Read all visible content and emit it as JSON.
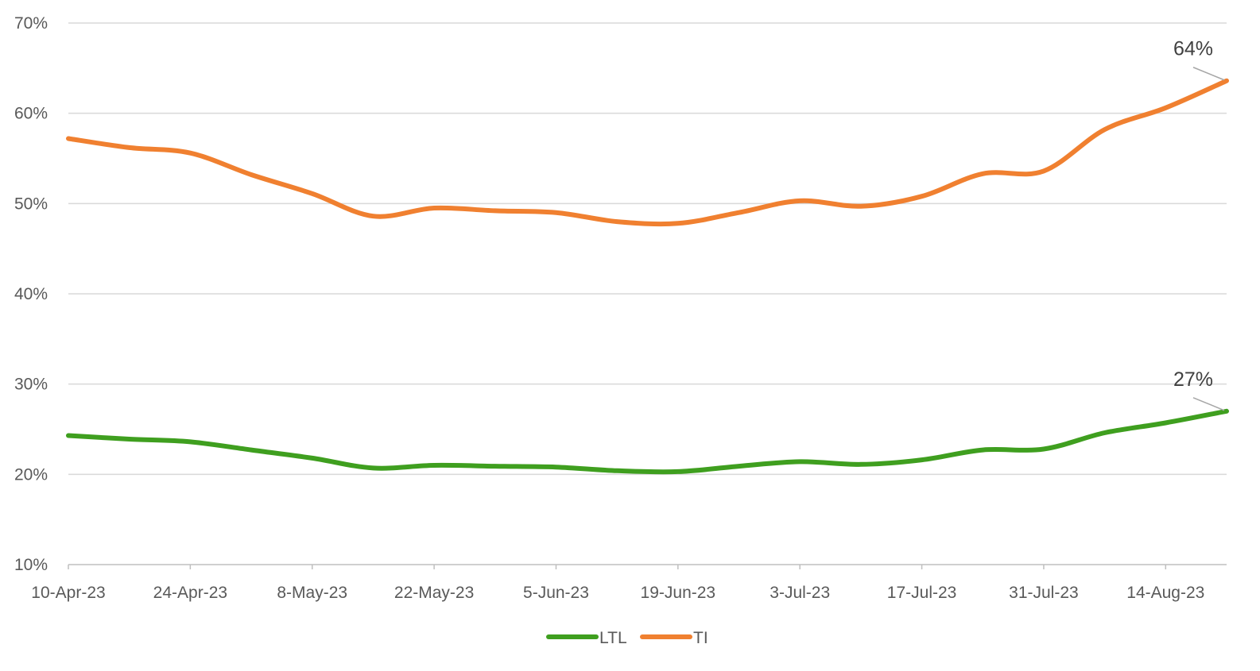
{
  "chart_data": {
    "type": "line",
    "title": "",
    "xlabel": "",
    "ylabel": "",
    "ylim": [
      10,
      70
    ],
    "y_ticks": [
      "10%",
      "20%",
      "30%",
      "40%",
      "50%",
      "60%",
      "70%"
    ],
    "y_tick_values": [
      10,
      20,
      30,
      40,
      50,
      60,
      70
    ],
    "x_start": "10-Apr-23",
    "x_end": "21-Aug-23",
    "x_tick_labels": [
      "10-Apr-23",
      "24-Apr-23",
      "8-May-23",
      "22-May-23",
      "5-Jun-23",
      "19-Jun-23",
      "3-Jul-23",
      "17-Jul-23",
      "31-Jul-23",
      "14-Aug-23"
    ],
    "grid": true,
    "legend": "bottom-center",
    "x": [
      "10-Apr-23",
      "17-Apr-23",
      "24-Apr-23",
      "1-May-23",
      "8-May-23",
      "15-May-23",
      "22-May-23",
      "29-May-23",
      "5-Jun-23",
      "12-Jun-23",
      "19-Jun-23",
      "26-Jun-23",
      "3-Jul-23",
      "10-Jul-23",
      "17-Jul-23",
      "24-Jul-23",
      "31-Jul-23",
      "7-Aug-23",
      "14-Aug-23",
      "21-Aug-23"
    ],
    "series": [
      {
        "name": "LTL",
        "color": "#3f9f1f",
        "values": [
          24.3,
          23.9,
          23.6,
          22.7,
          21.8,
          20.7,
          21.0,
          20.9,
          20.8,
          20.4,
          20.3,
          20.9,
          21.4,
          21.1,
          21.6,
          22.7,
          22.8,
          24.6,
          25.7,
          27.0
        ],
        "end_label": "27%"
      },
      {
        "name": "TI",
        "color": "#f08030",
        "values": [
          57.2,
          56.2,
          55.6,
          53.2,
          51.1,
          48.6,
          49.5,
          49.2,
          49.0,
          48.0,
          47.8,
          49.0,
          50.3,
          49.7,
          50.8,
          53.3,
          53.6,
          58.2,
          60.6,
          63.6
        ],
        "end_label": "64%"
      }
    ]
  }
}
